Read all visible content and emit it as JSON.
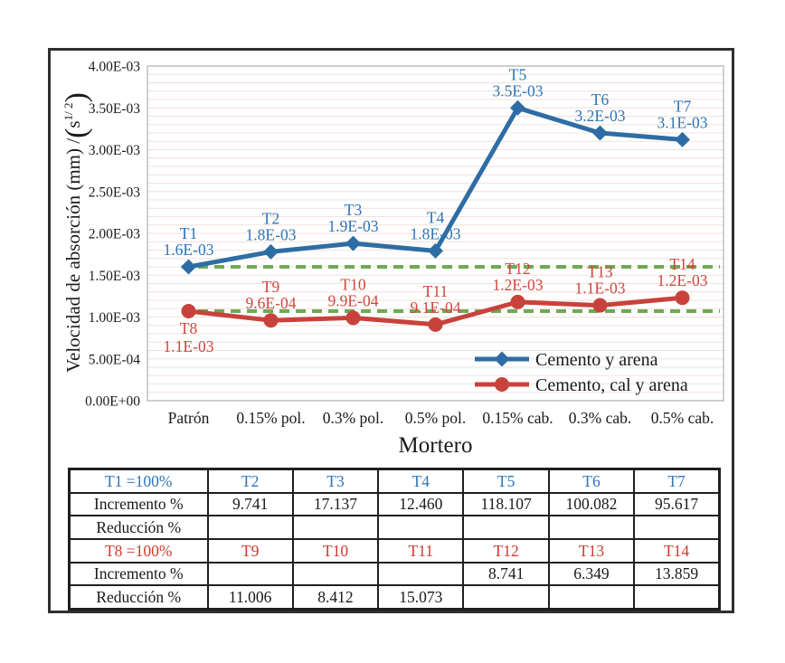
{
  "colors": {
    "series_blue": "#2E6DA4",
    "series_red": "#C8423C",
    "label_blue": "#2E74B5",
    "label_red": "#CF463D",
    "reference_green": "#6FA953",
    "gridline": "#F1E1DB",
    "plot_border": "#BFBFBF",
    "frame_border": "#2F2F2F",
    "table_border": "#1F1F1F",
    "text": "#1A1A1A"
  },
  "chart_data": {
    "type": "line",
    "title": "",
    "xlabel": "Mortero",
    "ylabel": "Velocidad de absorción (mm)/(s^1/2)",
    "ylabel_parts": {
      "text": "Velocidad de absorción (mm) /",
      "paren_open": "(",
      "base": "s",
      "superscript": "1/ 2",
      "paren_close": ")"
    },
    "categories": [
      "Patrón",
      "0.15% pol.",
      "0.3% pol.",
      "0.5% pol.",
      "0.15% cab.",
      "0.3% cab.",
      "0.5% cab."
    ],
    "ylim": [
      0,
      0.004
    ],
    "grid": "minor-horizontal",
    "legend_position": "bottom-right-inside",
    "y_ticks": [
      {
        "value": 0.004,
        "label": "4.00E-03"
      },
      {
        "value": 0.0035,
        "label": "3.50E-03"
      },
      {
        "value": 0.003,
        "label": "3.00E-03"
      },
      {
        "value": 0.0025,
        "label": "2.50E-03"
      },
      {
        "value": 0.002,
        "label": "2.00E-03"
      },
      {
        "value": 0.0015,
        "label": "1.50E-03"
      },
      {
        "value": 0.001,
        "label": "1.00E-03"
      },
      {
        "value": 0.0005,
        "label": "5.00E-04"
      },
      {
        "value": 0.0,
        "label": "0.00E+00"
      }
    ],
    "series": [
      {
        "name": "Cemento y arena",
        "color_key": "series_blue",
        "label_color_key": "label_blue",
        "marker": "diamond",
        "points": [
          {
            "id": "T1",
            "label": "1.6E-03",
            "value": 0.0016
          },
          {
            "id": "T2",
            "label": "1.8E-03",
            "value": 0.00178
          },
          {
            "id": "T3",
            "label": "1.9E-03",
            "value": 0.00188
          },
          {
            "id": "T4",
            "label": "1.8E-03",
            "value": 0.00179
          },
          {
            "id": "T5",
            "label": "3.5E-03",
            "value": 0.0035
          },
          {
            "id": "T6",
            "label": "3.2E-03",
            "value": 0.0032
          },
          {
            "id": "T7",
            "label": "3.1E-03",
            "value": 0.00312
          }
        ]
      },
      {
        "name": "Cemento, cal y arena",
        "color_key": "series_red",
        "label_color_key": "label_red",
        "marker": "circle",
        "points": [
          {
            "id": "T8",
            "label": "1.1E-03",
            "value": 0.00107,
            "label_below": true
          },
          {
            "id": "T9",
            "label": "9.6E-04",
            "value": 0.00096
          },
          {
            "id": "T10",
            "label": "9.9E-04",
            "value": 0.00099
          },
          {
            "id": "T11",
            "label": "9.1E-04",
            "value": 0.00091
          },
          {
            "id": "T12",
            "label": "1.2E-03",
            "value": 0.00118
          },
          {
            "id": "T13",
            "label": "1.1E-03",
            "value": 0.00114
          },
          {
            "id": "T14",
            "label": "1.2E-03",
            "value": 0.00123
          }
        ]
      }
    ],
    "reference_lines": [
      {
        "value": 0.0016,
        "style": "dashed",
        "color_key": "reference_green"
      },
      {
        "value": 0.00107,
        "style": "dashed",
        "color_key": "reference_green"
      }
    ]
  },
  "table": {
    "rows": [
      {
        "color": "blue",
        "cells": [
          "T1 =100%",
          "T2",
          "T3",
          "T4",
          "T5",
          "T6",
          "T7"
        ]
      },
      {
        "color": "black",
        "cells": [
          "Incremento %",
          "9.741",
          "17.137",
          "12.460",
          "118.107",
          "100.082",
          "95.617"
        ]
      },
      {
        "color": "black",
        "cells": [
          "Reducción %",
          "",
          "",
          "",
          "",
          "",
          ""
        ]
      },
      {
        "color": "red",
        "cells": [
          "T8 =100%",
          "T9",
          "T10",
          "T11",
          "T12",
          "T13",
          "T14"
        ]
      },
      {
        "color": "black",
        "cells": [
          "Incremento %",
          "",
          "",
          "",
          "8.741",
          "6.349",
          "13.859"
        ]
      },
      {
        "color": "black",
        "cells": [
          "Reducción %",
          "11.006",
          "8.412",
          "15.073",
          "",
          "",
          ""
        ]
      }
    ]
  }
}
